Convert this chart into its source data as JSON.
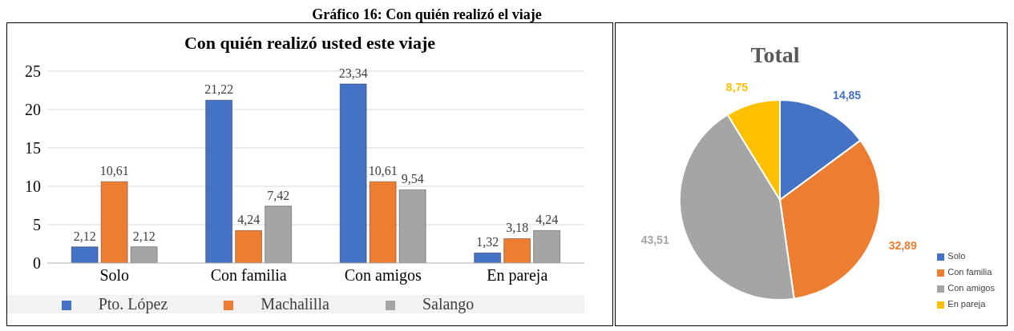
{
  "chart_data": [
    {
      "type": "bar",
      "title": "Con quién realizó usted este viaje",
      "annotations": [
        "Gráfico 16: Con quién realizó el viaje"
      ],
      "categories": [
        "Solo",
        "Con familia",
        "Con amigos",
        "En pareja"
      ],
      "series": [
        {
          "name": "Pto. López",
          "color": "#4472c4",
          "values": [
            2.12,
            21.22,
            23.34,
            1.32
          ],
          "value_labels": [
            "2,12",
            "21,22",
            "23,34",
            "1,32"
          ]
        },
        {
          "name": "Machalilla",
          "color": "#ed7d31",
          "values": [
            10.61,
            4.24,
            10.61,
            3.18
          ],
          "value_labels": [
            "10,61",
            "4,24",
            "10,61",
            "3,18"
          ]
        },
        {
          "name": "Salango",
          "color": "#a5a5a5",
          "values": [
            2.12,
            7.42,
            9.54,
            4.24
          ],
          "value_labels": [
            "2,12",
            "7,42",
            "9,54",
            "4,24"
          ]
        }
      ],
      "ylim": [
        0,
        25
      ],
      "yticks": [
        0,
        5,
        10,
        15,
        20,
        25
      ],
      "grid": "y",
      "legend": "bottom"
    },
    {
      "type": "pie",
      "title": "Total",
      "categories": [
        "Solo",
        "Con familia",
        "Con amigos",
        "En pareja"
      ],
      "values": [
        14.85,
        32.89,
        43.51,
        8.75
      ],
      "value_labels": [
        "14,85",
        "32,89",
        "43,51",
        "8,75"
      ],
      "colors": [
        "#4472c4",
        "#ed7d31",
        "#a5a5a5",
        "#ffc000"
      ],
      "legend": "bottom right"
    }
  ]
}
